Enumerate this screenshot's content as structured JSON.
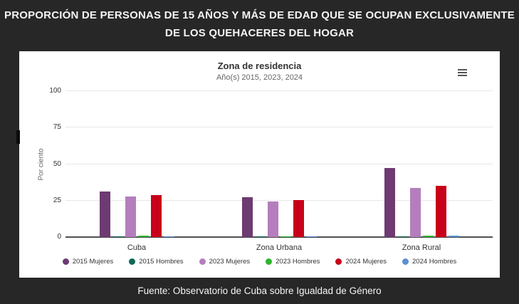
{
  "page": {
    "title_line1": "PROPORCIÓN DE PERSONAS DE 15 AÑOS Y MÁS DE EDAD QUE SE OCUPAN EXCLUSIVAMENTE",
    "title_line2": "DE LOS QUEHACERES DEL HOGAR",
    "source": "Fuente: Observatorio de Cuba sobre Igualdad de Género"
  },
  "theme": {
    "background": "#272727",
    "panel": "#ffffff",
    "header_text": "#f5f5f5",
    "grid": "#e7e7e7",
    "axis_line": "#4f4f4f",
    "text_primary": "#333333",
    "text_muted": "#666666"
  },
  "chart_data": {
    "type": "bar",
    "title": "Zona de residencia",
    "subtitle": "Año(s) 2015, 2023, 2024",
    "categories": [
      "Cuba",
      "Zona Urbana",
      "Zona Rural"
    ],
    "series": [
      {
        "name": "2015 Mujeres",
        "color": "#6e3a72",
        "values": [
          31.3,
          27.3,
          47.2
        ]
      },
      {
        "name": "2015 Hombres",
        "color": "#0e6a57",
        "values": [
          0.5,
          0.5,
          0.5
        ]
      },
      {
        "name": "2023 Mujeres",
        "color": "#b47ebd",
        "values": [
          27.9,
          24.3,
          33.8
        ]
      },
      {
        "name": "2023 Hombres",
        "color": "#2eb52e",
        "values": [
          0.8,
          0.7,
          1.2
        ]
      },
      {
        "name": "2024 Mujeres",
        "color": "#c80019",
        "values": [
          28.9,
          25.3,
          35.1
        ]
      },
      {
        "name": "2024 Hombres",
        "color": "#5b8fd4",
        "values": [
          0.7,
          0.5,
          0.8
        ]
      }
    ],
    "xlabel": "",
    "ylabel": "Por ciento",
    "ylim": [
      0,
      100
    ],
    "yticks": [
      0,
      25,
      50,
      75,
      100
    ],
    "grid": true,
    "legend_position": "bottom"
  }
}
